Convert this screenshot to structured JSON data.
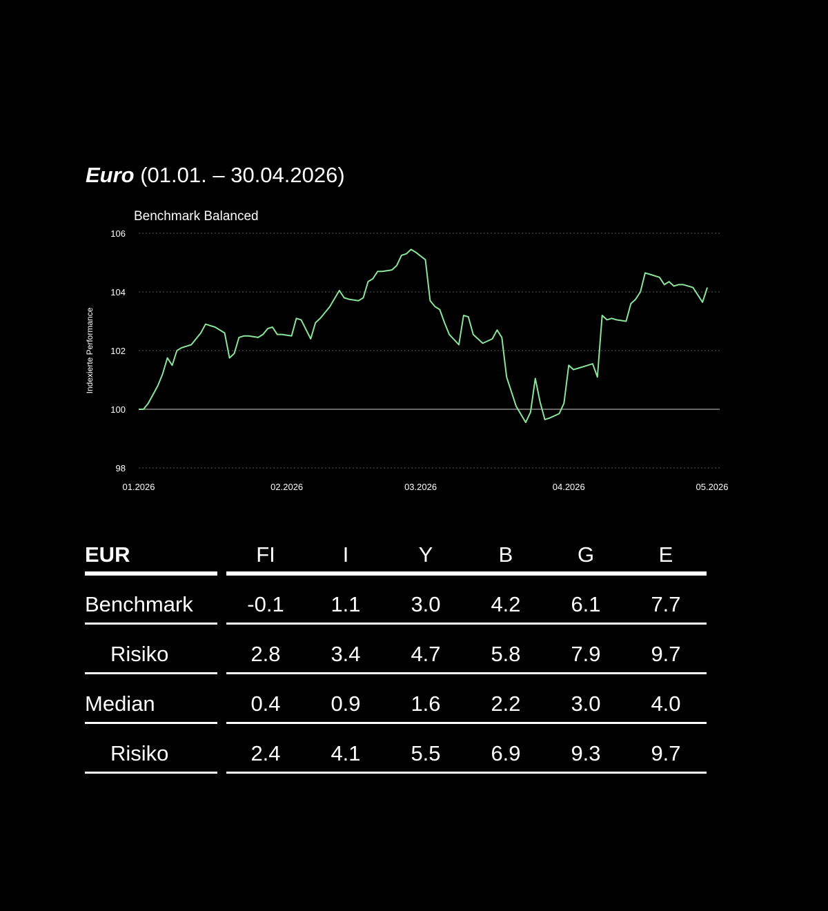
{
  "title": {
    "strong": "Euro",
    "rest": " (01.01. – 30.04.2026)"
  },
  "chart_data": {
    "type": "line",
    "series": [
      {
        "name": "Benchmark Balanced",
        "color": "#8be59a",
        "x": [
          "2026-01-01",
          "2026-01-02",
          "2026-01-03",
          "2026-01-05",
          "2026-01-06",
          "2026-01-07",
          "2026-01-08",
          "2026-01-09",
          "2026-01-10",
          "2026-01-12",
          "2026-01-13",
          "2026-01-14",
          "2026-01-15",
          "2026-01-17",
          "2026-01-19",
          "2026-01-20",
          "2026-01-21",
          "2026-01-22",
          "2026-01-23",
          "2026-01-24",
          "2026-01-26",
          "2026-01-27",
          "2026-01-28",
          "2026-01-29",
          "2026-01-30",
          "2026-01-31",
          "2026-02-02",
          "2026-02-03",
          "2026-02-04",
          "2026-02-06",
          "2026-02-07",
          "2026-02-08",
          "2026-02-09",
          "2026-02-10",
          "2026-02-12",
          "2026-02-13",
          "2026-02-14",
          "2026-02-16",
          "2026-02-17",
          "2026-02-18",
          "2026-02-19",
          "2026-02-20",
          "2026-02-21",
          "2026-02-23",
          "2026-02-24",
          "2026-02-25",
          "2026-02-26",
          "2026-02-27",
          "2026-02-28",
          "2026-03-02",
          "2026-03-03",
          "2026-03-04",
          "2026-03-05",
          "2026-03-06",
          "2026-03-07",
          "2026-03-09",
          "2026-03-10",
          "2026-03-11",
          "2026-03-12",
          "2026-03-14",
          "2026-03-16",
          "2026-03-17",
          "2026-03-18",
          "2026-03-19",
          "2026-03-21",
          "2026-03-23",
          "2026-03-24",
          "2026-03-25",
          "2026-03-26",
          "2026-03-27",
          "2026-03-28",
          "2026-03-30",
          "2026-03-31",
          "2026-04-01",
          "2026-04-02",
          "2026-04-03",
          "2026-04-04",
          "2026-04-06",
          "2026-04-07",
          "2026-04-08",
          "2026-04-09",
          "2026-04-10",
          "2026-04-11",
          "2026-04-13",
          "2026-04-14",
          "2026-04-15",
          "2026-04-16",
          "2026-04-17",
          "2026-04-18",
          "2026-04-20",
          "2026-04-21",
          "2026-04-22",
          "2026-04-23",
          "2026-04-24",
          "2026-04-25",
          "2026-04-27",
          "2026-04-28",
          "2026-04-29",
          "2026-04-30"
        ],
        "values": [
          100.0,
          100.0,
          100.2,
          100.8,
          101.2,
          101.75,
          101.5,
          102.0,
          102.1,
          102.2,
          102.4,
          102.6,
          102.9,
          102.8,
          102.6,
          101.75,
          101.9,
          102.45,
          102.5,
          102.5,
          102.45,
          102.55,
          102.75,
          102.8,
          102.55,
          102.55,
          102.5,
          103.1,
          103.05,
          102.4,
          102.95,
          103.1,
          103.3,
          103.5,
          104.05,
          103.8,
          103.75,
          103.7,
          103.8,
          104.35,
          104.45,
          104.7,
          104.7,
          104.75,
          104.9,
          105.25,
          105.3,
          105.45,
          105.35,
          105.1,
          103.7,
          103.5,
          103.4,
          102.95,
          102.55,
          102.2,
          103.2,
          103.15,
          102.55,
          102.25,
          102.4,
          102.7,
          102.45,
          101.1,
          100.1,
          99.55,
          99.9,
          101.05,
          100.25,
          99.65,
          99.7,
          99.85,
          100.2,
          101.5,
          101.35,
          101.4,
          101.45,
          101.55,
          101.1,
          103.2,
          103.05,
          103.1,
          103.05,
          103.0,
          103.6,
          103.75,
          104.0,
          104.65,
          104.6,
          104.5,
          104.25,
          104.35,
          104.2,
          104.25,
          104.25,
          104.15,
          103.9,
          103.65,
          104.15
        ]
      }
    ],
    "ylabel": "Indexierte Performance",
    "ylim": [
      98,
      106
    ],
    "yticks": [
      98,
      100,
      102,
      104,
      106
    ],
    "xlim": [
      "2026-01-01",
      "2026-05-01"
    ],
    "xticks": [
      {
        "x": "2026-01-01",
        "label": "01.2026"
      },
      {
        "x": "2026-02-01",
        "label": "02.2026"
      },
      {
        "x": "2026-03-01",
        "label": "03.2026"
      },
      {
        "x": "2026-04-01",
        "label": "04.2026"
      },
      {
        "x": "2026-05-01",
        "label": "05.2026"
      }
    ],
    "reference_line": 100,
    "grid": "horizontal-dotted",
    "legend": "top-left"
  },
  "table": {
    "label": "EUR",
    "columns": [
      "FI",
      "I",
      "Y",
      "B",
      "G",
      "E"
    ],
    "rows": [
      {
        "label": "Benchmark",
        "indent": false,
        "values": [
          "-0.1",
          "1.1",
          "3.0",
          "4.2",
          "6.1",
          "7.7"
        ]
      },
      {
        "label": "Risiko",
        "indent": true,
        "values": [
          "2.8",
          "3.4",
          "4.7",
          "5.8",
          "7.9",
          "9.7"
        ]
      },
      {
        "label": "Median",
        "indent": false,
        "values": [
          "0.4",
          "0.9",
          "1.6",
          "2.2",
          "3.0",
          "4.0"
        ]
      },
      {
        "label": "Risiko",
        "indent": true,
        "values": [
          "2.4",
          "4.1",
          "5.5",
          "6.9",
          "9.3",
          "9.7"
        ]
      }
    ]
  }
}
